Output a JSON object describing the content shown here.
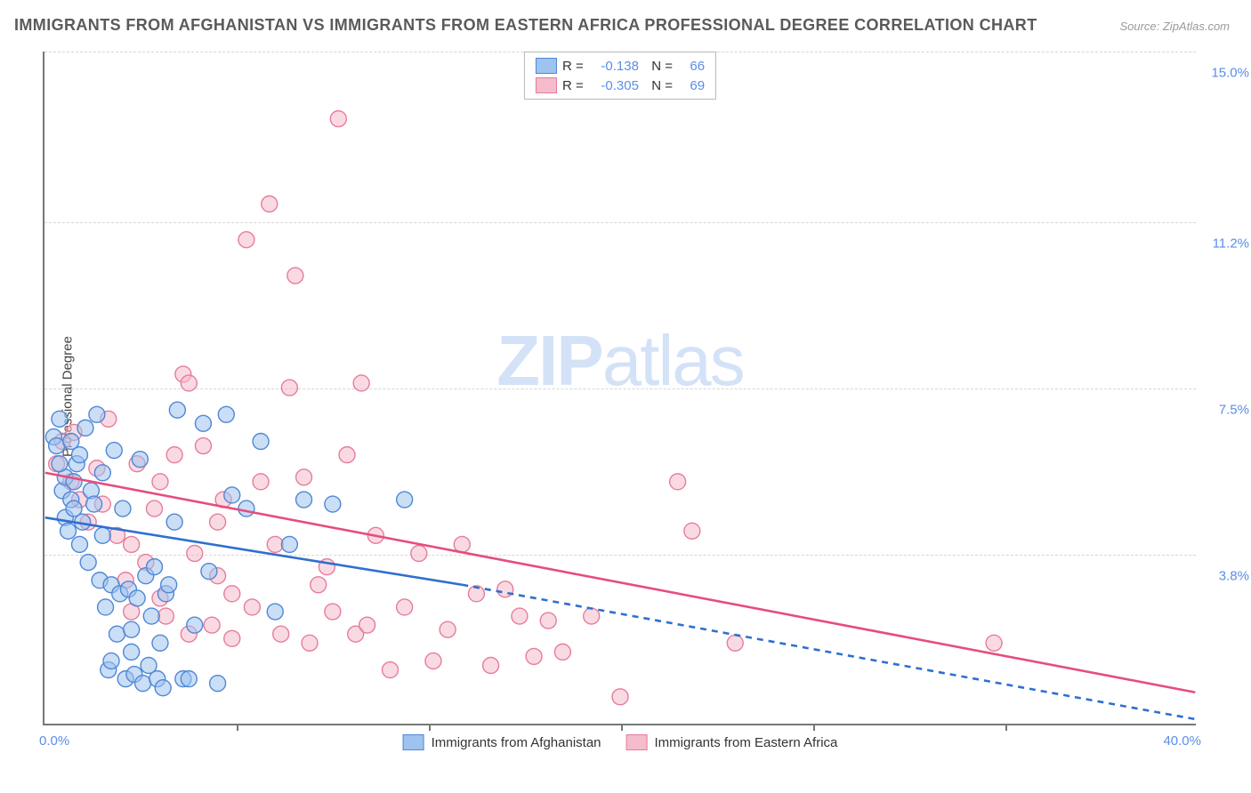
{
  "title": "IMMIGRANTS FROM AFGHANISTAN VS IMMIGRANTS FROM EASTERN AFRICA PROFESSIONAL DEGREE CORRELATION CHART",
  "source": "Source: ZipAtlas.com",
  "ylabel": "Professional Degree",
  "watermark_a": "ZIP",
  "watermark_b": "atlas",
  "chart": {
    "type": "scatter",
    "x_min": 0.0,
    "x_max": 40.0,
    "y_min": 0.0,
    "y_max": 15.0,
    "x_min_label": "0.0%",
    "x_max_label": "40.0%",
    "y_ticks": [
      3.8,
      7.5,
      11.2,
      15.0
    ],
    "y_tick_labels": [
      "3.8%",
      "7.5%",
      "11.2%",
      "15.0%"
    ],
    "x_tick_positions": [
      6.67,
      13.33,
      20.0,
      26.67,
      33.33
    ],
    "grid_color": "#d6d6d6",
    "axis_color": "#777777",
    "tick_label_color": "#5a8ee6",
    "marker_radius": 9,
    "marker_stroke_width": 1.4,
    "line_width": 2.6,
    "series": [
      {
        "key": "afghanistan",
        "label": "Immigrants from Afghanistan",
        "fill": "#9fc3ef",
        "fill_opacity": 0.55,
        "stroke": "#4f87d6",
        "line_color": "#2f6fd0",
        "R": "-0.138",
        "N": "66",
        "reg_x1": 0.0,
        "reg_y1": 4.6,
        "reg_solid_x2": 14.5,
        "reg_solid_y2": 3.1,
        "reg_dash_x2": 40.0,
        "reg_dash_y2": 0.1,
        "points": [
          [
            0.3,
            6.4
          ],
          [
            0.4,
            6.2
          ],
          [
            0.5,
            6.8
          ],
          [
            0.6,
            5.2
          ],
          [
            0.7,
            4.6
          ],
          [
            0.7,
            5.5
          ],
          [
            0.8,
            4.3
          ],
          [
            0.9,
            5.0
          ],
          [
            1.0,
            5.4
          ],
          [
            1.0,
            4.8
          ],
          [
            1.1,
            5.8
          ],
          [
            1.2,
            6.0
          ],
          [
            1.2,
            4.0
          ],
          [
            1.3,
            4.5
          ],
          [
            1.4,
            6.6
          ],
          [
            1.5,
            3.6
          ],
          [
            1.6,
            5.2
          ],
          [
            1.7,
            4.9
          ],
          [
            1.8,
            6.9
          ],
          [
            1.9,
            3.2
          ],
          [
            2.0,
            5.6
          ],
          [
            2.0,
            4.2
          ],
          [
            2.1,
            2.6
          ],
          [
            2.2,
            1.2
          ],
          [
            2.3,
            1.4
          ],
          [
            2.3,
            3.1
          ],
          [
            2.4,
            6.1
          ],
          [
            2.5,
            2.0
          ],
          [
            2.6,
            2.9
          ],
          [
            2.7,
            4.8
          ],
          [
            2.8,
            1.0
          ],
          [
            2.9,
            3.0
          ],
          [
            3.0,
            2.1
          ],
          [
            3.0,
            1.6
          ],
          [
            3.1,
            1.1
          ],
          [
            3.2,
            2.8
          ],
          [
            3.3,
            5.9
          ],
          [
            3.4,
            0.9
          ],
          [
            3.5,
            3.3
          ],
          [
            3.6,
            1.3
          ],
          [
            3.7,
            2.4
          ],
          [
            3.8,
            3.5
          ],
          [
            3.9,
            1.0
          ],
          [
            4.0,
            1.8
          ],
          [
            4.1,
            0.8
          ],
          [
            4.2,
            2.9
          ],
          [
            4.3,
            3.1
          ],
          [
            4.5,
            4.5
          ],
          [
            4.6,
            7.0
          ],
          [
            4.8,
            1.0
          ],
          [
            5.0,
            1.0
          ],
          [
            5.2,
            2.2
          ],
          [
            5.5,
            6.7
          ],
          [
            5.7,
            3.4
          ],
          [
            6.0,
            0.9
          ],
          [
            6.3,
            6.9
          ],
          [
            6.5,
            5.1
          ],
          [
            7.0,
            4.8
          ],
          [
            7.5,
            6.3
          ],
          [
            8.0,
            2.5
          ],
          [
            8.5,
            4.0
          ],
          [
            9.0,
            5.0
          ],
          [
            10.0,
            4.9
          ],
          [
            12.5,
            5.0
          ],
          [
            0.5,
            5.8
          ],
          [
            0.9,
            6.3
          ]
        ]
      },
      {
        "key": "eastern_africa",
        "label": "Immigrants from Eastern Africa",
        "fill": "#f5bccb",
        "fill_opacity": 0.55,
        "stroke": "#e67c9b",
        "line_color": "#e64d7d",
        "R": "-0.305",
        "N": "69",
        "reg_x1": 0.0,
        "reg_y1": 5.6,
        "reg_solid_x2": 40.0,
        "reg_solid_y2": 0.7,
        "reg_dash_x2": 40.0,
        "reg_dash_y2": 0.7,
        "points": [
          [
            0.6,
            6.3
          ],
          [
            0.9,
            5.4
          ],
          [
            1.2,
            5.0
          ],
          [
            1.5,
            4.5
          ],
          [
            1.8,
            5.7
          ],
          [
            2.0,
            4.9
          ],
          [
            2.2,
            6.8
          ],
          [
            2.5,
            4.2
          ],
          [
            2.8,
            3.2
          ],
          [
            3.0,
            2.5
          ],
          [
            3.2,
            5.8
          ],
          [
            3.5,
            3.6
          ],
          [
            3.8,
            4.8
          ],
          [
            4.0,
            5.4
          ],
          [
            4.2,
            2.4
          ],
          [
            4.5,
            6.0
          ],
          [
            4.8,
            7.8
          ],
          [
            5.0,
            7.6
          ],
          [
            5.2,
            3.8
          ],
          [
            5.5,
            6.2
          ],
          [
            5.8,
            2.2
          ],
          [
            6.0,
            4.5
          ],
          [
            6.2,
            5.0
          ],
          [
            6.5,
            2.9
          ],
          [
            7.0,
            10.8
          ],
          [
            7.5,
            5.4
          ],
          [
            7.8,
            11.6
          ],
          [
            8.0,
            4.0
          ],
          [
            8.5,
            7.5
          ],
          [
            8.7,
            10.0
          ],
          [
            9.0,
            5.5
          ],
          [
            9.5,
            3.1
          ],
          [
            10.0,
            2.5
          ],
          [
            10.2,
            13.5
          ],
          [
            10.5,
            6.0
          ],
          [
            10.8,
            2.0
          ],
          [
            11.0,
            7.6
          ],
          [
            11.5,
            4.2
          ],
          [
            12.0,
            1.2
          ],
          [
            12.5,
            2.6
          ],
          [
            13.0,
            3.8
          ],
          [
            13.5,
            1.4
          ],
          [
            14.0,
            2.1
          ],
          [
            14.5,
            4.0
          ],
          [
            15.0,
            2.9
          ],
          [
            15.5,
            1.3
          ],
          [
            16.0,
            3.0
          ],
          [
            16.5,
            2.4
          ],
          [
            17.0,
            1.5
          ],
          [
            17.5,
            2.3
          ],
          [
            18.0,
            1.6
          ],
          [
            19.0,
            2.4
          ],
          [
            20.0,
            0.6
          ],
          [
            22.0,
            5.4
          ],
          [
            22.5,
            4.3
          ],
          [
            24.0,
            1.8
          ],
          [
            33.0,
            1.8
          ],
          [
            3.0,
            4.0
          ],
          [
            4.0,
            2.8
          ],
          [
            5.0,
            2.0
          ],
          [
            6.0,
            3.3
          ],
          [
            6.5,
            1.9
          ],
          [
            7.2,
            2.6
          ],
          [
            8.2,
            2.0
          ],
          [
            9.2,
            1.8
          ],
          [
            9.8,
            3.5
          ],
          [
            11.2,
            2.2
          ],
          [
            0.4,
            5.8
          ],
          [
            1.0,
            6.5
          ]
        ]
      }
    ]
  }
}
